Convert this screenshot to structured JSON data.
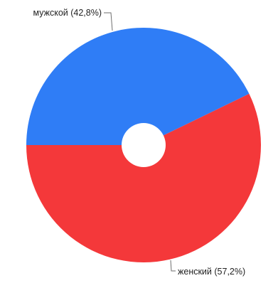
{
  "chart_data": {
    "type": "pie",
    "variant": "donut",
    "slices": [
      {
        "label": "мужской (42,8%)",
        "name": "мужской",
        "percent": 42.8,
        "color": "#2f7df6"
      },
      {
        "label": "женский (57,2%)",
        "name": "женский",
        "percent": 57.2,
        "color": "#f4383a"
      }
    ],
    "start_angle_deg": 180,
    "direction": "clockwise",
    "legend": "none",
    "labels": "outside with leader lines"
  }
}
